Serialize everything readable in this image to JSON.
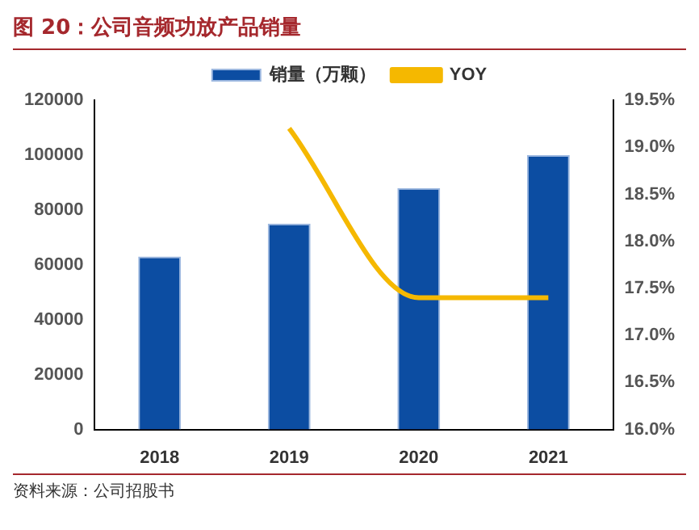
{
  "chart_data": {
    "type": "bar",
    "title": "图 20：公司音频功放产品销量",
    "categories": [
      "2018",
      "2019",
      "2020",
      "2021"
    ],
    "series": [
      {
        "name": "销量（万颗）",
        "color": "#0c4da2",
        "values": [
          63000,
          75000,
          88000,
          100000
        ]
      },
      {
        "name": "YOY",
        "type": "line",
        "color": "#f5b800",
        "axis": "y2",
        "marker": "none",
        "values": [
          null,
          19.2,
          17.4,
          17.4
        ]
      }
    ],
    "ylim": [
      0,
      120000
    ],
    "yticks": [
      0,
      20000,
      40000,
      60000,
      80000,
      100000,
      120000
    ],
    "y2lim": [
      16.0,
      19.5
    ],
    "y2ticks": [
      {
        "value": 16.0,
        "label": "16.0%"
      },
      {
        "value": 16.5,
        "label": "16.5%"
      },
      {
        "value": 17.0,
        "label": "17.0%"
      },
      {
        "value": 17.5,
        "label": "17.5%"
      },
      {
        "value": 18.0,
        "label": "18.0%"
      },
      {
        "value": 18.5,
        "label": "18.5%"
      },
      {
        "value": 19.0,
        "label": "19.0%"
      },
      {
        "value": 19.5,
        "label": "19.5%"
      }
    ],
    "grid": false,
    "legend": "top",
    "annotations": [
      "资料来源：公司招股书"
    ]
  }
}
